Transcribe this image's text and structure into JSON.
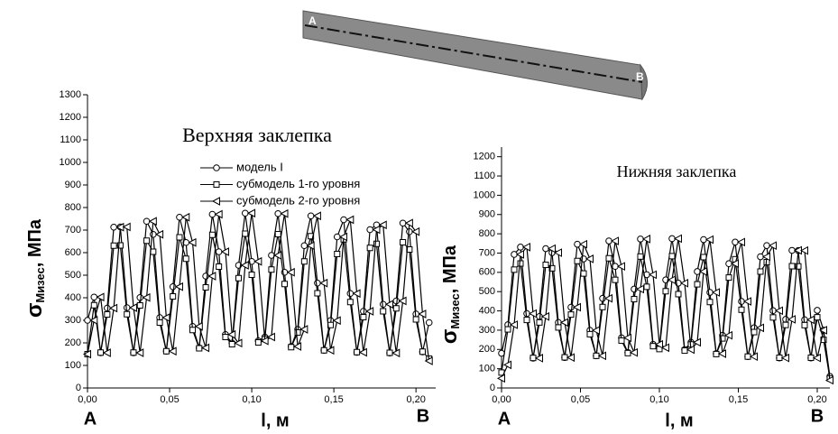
{
  "beam_labels": [
    "A",
    "B"
  ],
  "chart_data": [
    {
      "type": "line",
      "title": "Верхняя заклепка",
      "ylabel": "σ",
      "ylabel_subscript": "Мизес",
      "ylabel_unit": ", МПа",
      "xlabel": "l, м",
      "annotations": [
        "A",
        "B"
      ],
      "xlim": [
        0,
        0.212
      ],
      "ylim": [
        0,
        1300
      ],
      "xticks": [
        {
          "value": 0,
          "label": "0,00"
        },
        {
          "value": 0.05,
          "label": "0,05"
        },
        {
          "value": 0.1,
          "label": "0,10"
        },
        {
          "value": 0.15,
          "label": "0,15"
        },
        {
          "value": 0.2,
          "label": "0,20"
        }
      ],
      "yticks": [
        0,
        100,
        200,
        300,
        400,
        500,
        600,
        700,
        800,
        900,
        1000,
        1100,
        1200,
        1300
      ],
      "legend": "upper center",
      "x": [
        0,
        0.004,
        0.008,
        0.012,
        0.016,
        0.02,
        0.024,
        0.028,
        0.032,
        0.036,
        0.04,
        0.044,
        0.048,
        0.052,
        0.056,
        0.06,
        0.064,
        0.068,
        0.072,
        0.076,
        0.08,
        0.084,
        0.088,
        0.092,
        0.096,
        0.1,
        0.104,
        0.108,
        0.112,
        0.116,
        0.12,
        0.124,
        0.128,
        0.132,
        0.136,
        0.14,
        0.144,
        0.148,
        0.152,
        0.156,
        0.16,
        0.164,
        0.168,
        0.172,
        0.176,
        0.18,
        0.184,
        0.188,
        0.192,
        0.196,
        0.2,
        0.204,
        0.208
      ],
      "series": [
        {
          "name": "модель I",
          "color": "#000000",
          "marker": "circle",
          "values": [
            300,
            403,
            156,
            354,
            713,
            714,
            356,
            156,
            401,
            739,
            681,
            312,
            163,
            449,
            757,
            645,
            273,
            178,
            496,
            770,
            604,
            237,
            199,
            544,
            775,
            561,
            209,
            226,
            588,
            773,
            513,
            184,
            260,
            631,
            763,
            465,
            167,
            299,
            670,
            746,
            419,
            158,
            340,
            702,
            723,
            371,
            155,
            386,
            731,
            693,
            328,
            160,
            290
          ]
        },
        {
          "name": "субмодель 1-го уровня",
          "color": "#000000",
          "marker": "square",
          "values": [
            150,
            367,
            157,
            326,
            631,
            632,
            327,
            157,
            366,
            653,
            604,
            290,
            163,
            406,
            668,
            573,
            257,
            176,
            446,
            679,
            538,
            226,
            194,
            487,
            684,
            502,
            202,
            217,
            525,
            682,
            461,
            181,
            246,
            561,
            673,
            420,
            167,
            279,
            594,
            659,
            381,
            159,
            314,
            621,
            639,
            340,
            156,
            353,
            646,
            614,
            304,
            161,
            130
          ]
        },
        {
          "name": "субмодель 2-го уровня",
          "color": "#000000",
          "marker": "triangle",
          "values": [
            150,
            300,
            403,
            156,
            354,
            713,
            714,
            356,
            156,
            401,
            739,
            681,
            312,
            163,
            449,
            757,
            645,
            273,
            178,
            496,
            770,
            604,
            237,
            199,
            544,
            775,
            561,
            209,
            226,
            588,
            773,
            513,
            184,
            260,
            631,
            763,
            465,
            167,
            299,
            670,
            746,
            419,
            158,
            340,
            702,
            723,
            371,
            155,
            386,
            731,
            693,
            328,
            120
          ]
        }
      ]
    },
    {
      "type": "line",
      "title": "Нижняя заклепка",
      "ylabel": "σ",
      "ylabel_subscript": "Мизес",
      "ylabel_unit": ", МПа",
      "xlabel": "l, м",
      "annotations": [
        "A",
        "B"
      ],
      "xlim": [
        0,
        0.208
      ],
      "ylim": [
        0,
        1250
      ],
      "xticks": [
        {
          "value": 0,
          "label": "0,00"
        },
        {
          "value": 0.05,
          "label": "0,05"
        },
        {
          "value": 0.1,
          "label": "0,10"
        },
        {
          "value": 0.15,
          "label": "0,15"
        },
        {
          "value": 0.2,
          "label": "0,20"
        }
      ],
      "yticks": [
        0,
        100,
        200,
        300,
        400,
        500,
        600,
        700,
        800,
        900,
        1000,
        1100,
        1200
      ],
      "legend": false,
      "x": [
        0,
        0.004,
        0.008,
        0.012,
        0.016,
        0.02,
        0.024,
        0.028,
        0.032,
        0.036,
        0.04,
        0.044,
        0.048,
        0.052,
        0.056,
        0.06,
        0.064,
        0.068,
        0.072,
        0.076,
        0.08,
        0.084,
        0.088,
        0.092,
        0.096,
        0.1,
        0.104,
        0.108,
        0.112,
        0.116,
        0.12,
        0.124,
        0.128,
        0.132,
        0.136,
        0.14,
        0.144,
        0.148,
        0.152,
        0.156,
        0.16,
        0.164,
        0.168,
        0.172,
        0.176,
        0.18,
        0.184,
        0.188,
        0.192,
        0.196,
        0.2,
        0.204,
        0.208
      ],
      "series": [
        {
          "color": "#000000",
          "marker": "circle",
          "values": [
            180,
            328,
            693,
            731,
            386,
            155,
            371,
            723,
            702,
            340,
            158,
            419,
            746,
            670,
            299,
            167,
            465,
            763,
            631,
            260,
            184,
            513,
            773,
            588,
            226,
            209,
            561,
            775,
            544,
            199,
            237,
            604,
            770,
            496,
            178,
            273,
            645,
            757,
            449,
            163,
            312,
            681,
            739,
            401,
            156,
            356,
            714,
            713,
            354,
            156,
            403,
            300,
            60
          ]
        },
        {
          "color": "#000000",
          "marker": "square",
          "values": [
            80,
            304,
            614,
            646,
            353,
            156,
            340,
            639,
            621,
            314,
            159,
            381,
            659,
            594,
            279,
            167,
            420,
            673,
            561,
            246,
            181,
            461,
            682,
            525,
            217,
            202,
            502,
            684,
            487,
            194,
            226,
            538,
            679,
            446,
            176,
            257,
            573,
            668,
            406,
            163,
            290,
            604,
            653,
            366,
            157,
            327,
            632,
            631,
            326,
            157,
            367,
            250,
            50
          ]
        },
        {
          "color": "#000000",
          "marker": "triangle",
          "values": [
            50,
            120,
            328,
            693,
            731,
            386,
            155,
            371,
            723,
            702,
            340,
            158,
            419,
            746,
            670,
            299,
            167,
            465,
            763,
            631,
            260,
            184,
            513,
            773,
            588,
            226,
            209,
            561,
            775,
            544,
            199,
            237,
            604,
            770,
            496,
            178,
            273,
            645,
            757,
            449,
            163,
            312,
            681,
            739,
            401,
            156,
            356,
            714,
            713,
            354,
            156,
            300,
            40
          ]
        }
      ]
    }
  ]
}
